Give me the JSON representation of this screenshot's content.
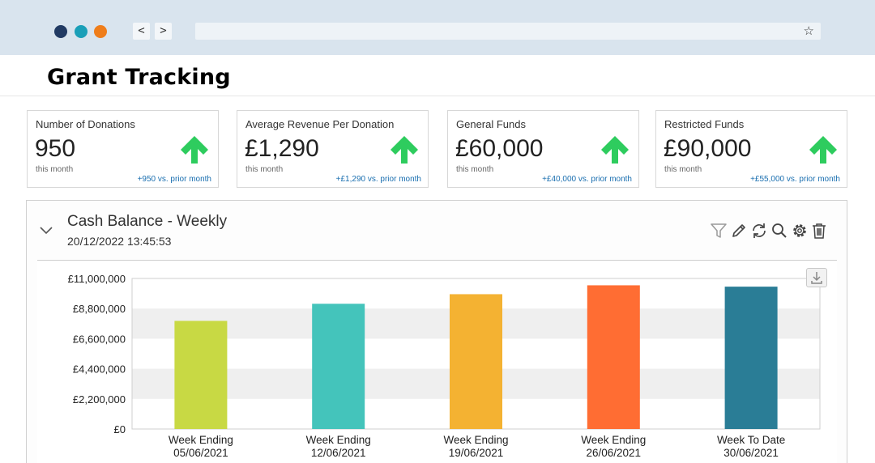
{
  "browser": {
    "window_dots": [
      "#213a63",
      "#1a9fb8",
      "#ef7d1a"
    ],
    "back_label": "<",
    "forward_label": ">",
    "bookmark_icon": "star-icon",
    "bookmark_glyph": "☆"
  },
  "page": {
    "title": "Grant Tracking"
  },
  "kpis": [
    {
      "label": "Number of Donations",
      "value": "950",
      "period": "this month",
      "delta": "+950 vs. prior month",
      "trend": "up"
    },
    {
      "label": "Average Revenue Per Donation",
      "value": "£1,290",
      "period": "this month",
      "delta": "+£1,290 vs. prior month",
      "trend": "up"
    },
    {
      "label": "General Funds",
      "value": "£60,000",
      "period": "this month",
      "delta": "+£40,000 vs. prior month",
      "trend": "up"
    },
    {
      "label": "Restricted Funds",
      "value": "£90,000",
      "period": "this month",
      "delta": "+£55,000 vs. prior month",
      "trend": "up"
    }
  ],
  "trend_color": "#2ecc5e",
  "panel": {
    "title": "Cash Balance - Weekly",
    "date": "20/12/2022 13:45:53",
    "tools": [
      "filter-icon",
      "edit-icon",
      "refresh-icon",
      "search-icon",
      "settings-icon",
      "delete-icon"
    ]
  },
  "chart_data": {
    "type": "bar",
    "categories": [
      [
        "Week Ending",
        "05/06/2021"
      ],
      [
        "Week Ending",
        "12/06/2021"
      ],
      [
        "Week Ending",
        "19/06/2021"
      ],
      [
        "Week Ending",
        "26/06/2021"
      ],
      [
        "Week To Date",
        "30/06/2021"
      ]
    ],
    "values": [
      7900000,
      9150000,
      9850000,
      10500000,
      10400000
    ],
    "colors": [
      "#c8d944",
      "#44c4bb",
      "#f4b232",
      "#ff6d33",
      "#2a7d96"
    ],
    "ylim": [
      0,
      11000000
    ],
    "yticks": [
      "£0",
      "£2,200,000",
      "£4,400,000",
      "£6,600,000",
      "£8,800,000",
      "£11,000,000"
    ],
    "grid": "alternating bands"
  }
}
